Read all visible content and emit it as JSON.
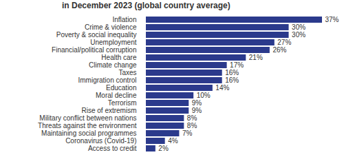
{
  "chart_data": {
    "type": "bar",
    "orientation": "horizontal",
    "title": "in December 2023 (global country average)",
    "categories": [
      "Inflation",
      "Crime & violence",
      "Poverty & social inequality",
      "Unemployment",
      "Financial/political corruption",
      "Health care",
      "Climate change",
      "Taxes",
      "Immigration control",
      "Education",
      "Moral decline",
      "Terrorism",
      "Rise of extremism",
      "Military conflict between nations",
      "Threats against the environment",
      "Maintaining social programmes",
      "Coronavirus (Covid-19)",
      "Access to credit"
    ],
    "values": [
      37,
      30,
      30,
      27,
      26,
      21,
      17,
      16,
      16,
      14,
      10,
      9,
      9,
      8,
      8,
      7,
      4,
      2
    ],
    "value_labels": [
      "37%",
      "30%",
      "30%",
      "27%",
      "26%",
      "21%",
      "17%",
      "16%",
      "16%",
      "14%",
      "10%",
      "9%",
      "9%",
      "8%",
      "8%",
      "7%",
      "4%",
      "2%"
    ],
    "data_labels": true,
    "color": "#2b3a8c",
    "xlim": [
      0,
      37
    ],
    "tick_labels": "y",
    "grid": false
  }
}
